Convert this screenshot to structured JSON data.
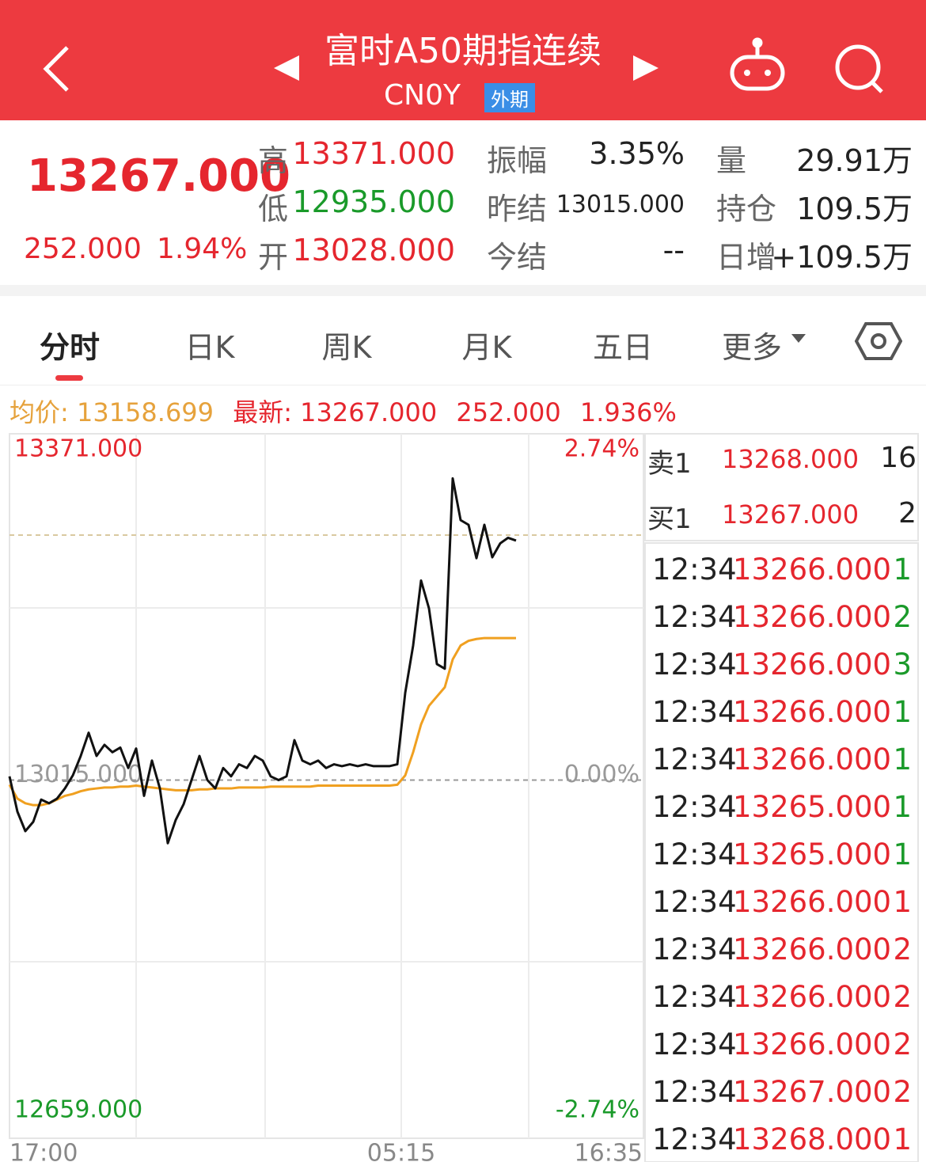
{
  "header": {
    "title": "富时A50期指连续",
    "code": "CN0Y",
    "tag": "外期"
  },
  "quote": {
    "price": "13267.000",
    "change": "252.000",
    "change_pct": "1.94%",
    "fields": [
      {
        "label": "高",
        "value": "13371.000"
      },
      {
        "label": "低",
        "value": "12935.000"
      },
      {
        "label": "开",
        "value": "13028.000"
      },
      {
        "label": "振幅",
        "value": "3.35%"
      },
      {
        "label": "昨结",
        "value": "13015.000"
      },
      {
        "label": "今结",
        "value": "--"
      },
      {
        "label": "量",
        "value": "29.91万"
      },
      {
        "label": "持仓",
        "value": "109.5万"
      },
      {
        "label": "日增",
        "value": "+109.5万"
      }
    ]
  },
  "tabs": [
    "分时",
    "日K",
    "周K",
    "月K",
    "五日",
    "更多"
  ],
  "legend": {
    "avg_label": "均价:",
    "avg": "13158.699",
    "last_label": "最新:",
    "last": "13267.000",
    "change": "252.000",
    "change_pct": "1.936%"
  },
  "order_book": [
    {
      "side": "卖1",
      "price": "13268.000",
      "volume": "16"
    },
    {
      "side": "买1",
      "price": "13267.000",
      "volume": "2"
    }
  ],
  "trades": [
    {
      "time": "12:34",
      "price": "13266.000",
      "volume": "1",
      "color": "#1a9a2a"
    },
    {
      "time": "12:34",
      "price": "13266.000",
      "volume": "2",
      "color": "#1a9a2a"
    },
    {
      "time": "12:34",
      "price": "13266.000",
      "volume": "3",
      "color": "#1a9a2a"
    },
    {
      "time": "12:34",
      "price": "13266.000",
      "volume": "1",
      "color": "#1a9a2a"
    },
    {
      "time": "12:34",
      "price": "13266.000",
      "volume": "1",
      "color": "#1a9a2a"
    },
    {
      "time": "12:34",
      "price": "13265.000",
      "volume": "1",
      "color": "#1a9a2a"
    },
    {
      "time": "12:34",
      "price": "13265.000",
      "volume": "1",
      "color": "#1a9a2a"
    },
    {
      "time": "12:34",
      "price": "13266.000",
      "volume": "1",
      "color": "#e5262e"
    },
    {
      "time": "12:34",
      "price": "13266.000",
      "volume": "2",
      "color": "#e5262e"
    },
    {
      "time": "12:34",
      "price": "13266.000",
      "volume": "2",
      "color": "#e5262e"
    },
    {
      "time": "12:34",
      "price": "13266.000",
      "volume": "2",
      "color": "#e5262e"
    },
    {
      "time": "12:34",
      "price": "13267.000",
      "volume": "2",
      "color": "#e5262e"
    },
    {
      "time": "12:34",
      "price": "13268.000",
      "volume": "1",
      "color": "#e5262e"
    }
  ],
  "chart_data": {
    "type": "line",
    "grid": true,
    "ylim": [
      12659,
      13371
    ],
    "yticks": [
      {
        "value": 12659,
        "label": "12659.000"
      },
      {
        "value": 13015,
        "label": "13015.000"
      },
      {
        "value": 13371,
        "label": "13371.000"
      }
    ],
    "y2lim": [
      -2.74,
      2.74
    ],
    "y2ticks": [
      {
        "value": -2.74,
        "label": "-2.74%"
      },
      {
        "value": 0,
        "label": "0.00%"
      },
      {
        "value": 2.74,
        "label": "2.74%"
      }
    ],
    "xlim": [
      0,
      80
    ],
    "xticks": [
      {
        "value": 0,
        "label": "17:00"
      },
      {
        "value": 49.5,
        "label": "05:15"
      },
      {
        "value": 80,
        "label": "16:35"
      }
    ],
    "series": [
      {
        "color": "#111111",
        "values": [
          13019,
          12981,
          12960,
          12970,
          12994,
          12990,
          12995,
          13006,
          13020,
          13041,
          13066,
          13041,
          13053,
          13045,
          13050,
          13028,
          13049,
          12998,
          13036,
          13006,
          12947,
          12972,
          12989,
          13015,
          13041,
          13015,
          13006,
          13028,
          13019,
          13032,
          13028,
          13041,
          13036,
          13019,
          13015,
          13019,
          13058,
          13036,
          13032,
          13036,
          13028,
          13032,
          13030,
          13032,
          13030,
          13032,
          13030,
          13030,
          13030,
          13032,
          13109,
          13160,
          13230,
          13200,
          13140,
          13135,
          13340,
          13295,
          13290,
          13254,
          13290,
          13255,
          13270,
          13276,
          13273
        ]
      },
      {
        "color": "#f0a020",
        "values": [
          13010,
          12995,
          12990,
          12988,
          12988,
          12990,
          12994,
          12998,
          13000,
          13003,
          13005,
          13006,
          13007,
          13007,
          13008,
          13008,
          13009,
          13008,
          13007,
          13006,
          13005,
          13004,
          13004,
          13004,
          13005,
          13005,
          13006,
          13006,
          13006,
          13007,
          13007,
          13007,
          13007,
          13008,
          13008,
          13008,
          13008,
          13008,
          13008,
          13009,
          13009,
          13009,
          13009,
          13009,
          13009,
          13009,
          13009,
          13009,
          13009,
          13010,
          13020,
          13045,
          13075,
          13095,
          13105,
          13115,
          13145,
          13160,
          13165,
          13167,
          13168,
          13168,
          13168,
          13168,
          13168
        ]
      }
    ]
  }
}
